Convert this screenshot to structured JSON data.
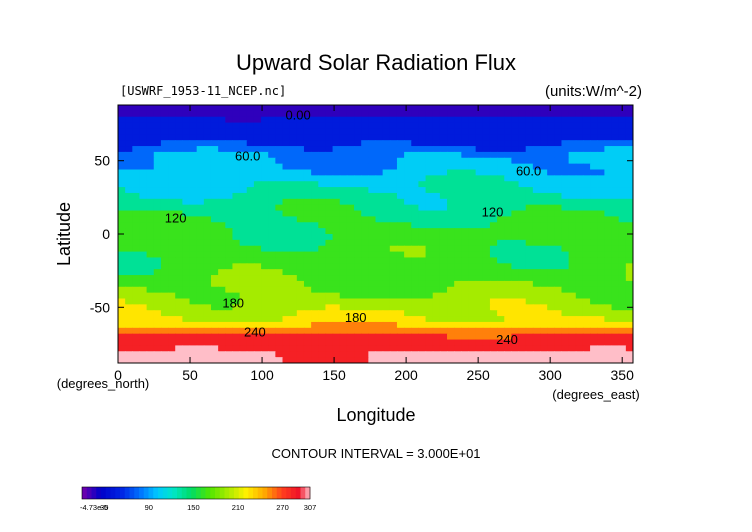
{
  "chart_data": {
    "type": "heatmap",
    "title": "Upward Solar Radiation Flux",
    "file_label": "[USWRF_1953-11_NCEP.nc]",
    "units_label": "(units:W/m^-2)",
    "xlabel": "Longitude",
    "ylabel": "Latitude",
    "x_unit_label": "(degrees_east)",
    "y_unit_label": "(degrees_north)",
    "xlim": [
      0,
      357.5
    ],
    "ylim": [
      -88,
      88
    ],
    "x_ticks": [
      0,
      50,
      100,
      150,
      200,
      250,
      300,
      350
    ],
    "y_ticks": [
      -50,
      0,
      50
    ],
    "contour_interval_text": "CONTOUR INTERVAL = 3.000E+01",
    "contour_labels": [
      {
        "text": "0.00",
        "lon": 125,
        "lat": 78
      },
      {
        "text": "60.0",
        "lon": 90,
        "lat": 50
      },
      {
        "text": "60.0",
        "lon": 285,
        "lat": 40
      },
      {
        "text": "120",
        "lon": 40,
        "lat": 8
      },
      {
        "text": "120",
        "lon": 260,
        "lat": 12
      },
      {
        "text": "180",
        "lon": 80,
        "lat": -50
      },
      {
        "text": "180",
        "lon": 165,
        "lat": -60
      },
      {
        "text": "240",
        "lon": 95,
        "lat": -70
      },
      {
        "text": "240",
        "lon": 270,
        "lat": -75
      }
    ],
    "colorbar": {
      "min_label": "-4.73e-5",
      "tick_labels": [
        "30",
        "90",
        "150",
        "210",
        "270",
        "307"
      ]
    },
    "latitude_bands": [
      {
        "lat": 88,
        "value": 5
      },
      {
        "lat": 80,
        "value": 5
      },
      {
        "lat": 76,
        "value": 35
      },
      {
        "lat": 60,
        "value": 40
      },
      {
        "lat": 56,
        "value": 70
      },
      {
        "lat": 44,
        "value": 80
      },
      {
        "lat": 38,
        "value": 95
      },
      {
        "lat": 28,
        "value": 110
      },
      {
        "lat": 18,
        "value": 125
      },
      {
        "lat": 5,
        "value": 140
      },
      {
        "lat": -10,
        "value": 145
      },
      {
        "lat": -25,
        "value": 150
      },
      {
        "lat": -40,
        "value": 165
      },
      {
        "lat": -50,
        "value": 185
      },
      {
        "lat": -58,
        "value": 200
      },
      {
        "lat": -63,
        "value": 220
      },
      {
        "lat": -67,
        "value": 250
      },
      {
        "lat": -72,
        "value": 265
      },
      {
        "lat": -78,
        "value": 280
      },
      {
        "lat": -84,
        "value": 290
      },
      {
        "lat": -88,
        "value": 285
      }
    ]
  }
}
